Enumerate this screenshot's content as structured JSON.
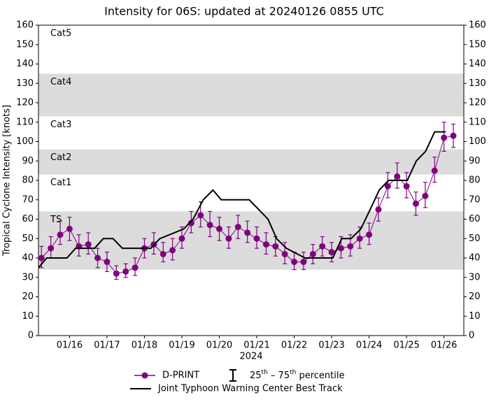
{
  "chart_data": {
    "type": "line",
    "title": "Intensity for 06S: updated at 20240126 0855 UTC",
    "xlabel": "2024",
    "ylabel": "Tropical Cyclone Intensity [knots]",
    "xlim": [
      15.17,
      26.53
    ],
    "xticks": [
      {
        "value": 16,
        "label": "01/16"
      },
      {
        "value": 17,
        "label": "01/17"
      },
      {
        "value": 18,
        "label": "01/18"
      },
      {
        "value": 19,
        "label": "01/19"
      },
      {
        "value": 20,
        "label": "01/20"
      },
      {
        "value": 21,
        "label": "01/21"
      },
      {
        "value": 22,
        "label": "01/22"
      },
      {
        "value": 23,
        "label": "01/23"
      },
      {
        "value": 24,
        "label": "01/24"
      },
      {
        "value": 25,
        "label": "01/25"
      },
      {
        "value": 26,
        "label": "01/26"
      }
    ],
    "ylim": [
      0,
      160
    ],
    "yticks": [
      0,
      10,
      20,
      30,
      40,
      50,
      60,
      70,
      80,
      90,
      100,
      110,
      120,
      130,
      140,
      150,
      160
    ],
    "y2lim": [
      0,
      160
    ],
    "y2ticks": [
      0,
      10,
      20,
      30,
      40,
      50,
      60,
      70,
      80,
      90,
      100,
      110,
      120,
      130,
      140,
      150,
      160
    ],
    "bands": [
      {
        "label": "TS",
        "range": [
          34,
          64
        ],
        "shaded": true
      },
      {
        "label": "Cat1",
        "range": [
          64,
          83
        ],
        "shaded": false
      },
      {
        "label": "Cat2",
        "range": [
          83,
          96
        ],
        "shaded": true
      },
      {
        "label": "Cat3",
        "range": [
          96,
          113
        ],
        "shaded": false
      },
      {
        "label": "Cat4",
        "range": [
          113,
          135
        ],
        "shaded": true
      },
      {
        "label": "Cat5",
        "range": [
          135,
          160
        ],
        "shaded": false
      }
    ],
    "band_color": "#dcdcdc",
    "series": [
      {
        "name": "D-PRINT",
        "color": "#800080",
        "marker": "circle",
        "x": [
          15.25,
          15.5,
          15.75,
          16,
          16.25,
          16.5,
          16.75,
          17,
          17.25,
          17.5,
          17.75,
          18,
          18.25,
          18.5,
          18.75,
          19,
          19.25,
          19.5,
          19.75,
          20,
          20.25,
          20.5,
          20.75,
          21,
          21.25,
          21.5,
          21.75,
          22,
          22.25,
          22.5,
          22.75,
          23,
          23.25,
          23.5,
          23.75,
          24,
          24.25,
          24.5,
          24.75,
          25,
          25.25,
          25.5,
          25.75,
          26,
          26.25
        ],
        "values": [
          40,
          45,
          52,
          55,
          46,
          47,
          40,
          38,
          32,
          33,
          35,
          45,
          47,
          42,
          44,
          50,
          58,
          62,
          57,
          55,
          50,
          56,
          53,
          50,
          47,
          46,
          42,
          38,
          38,
          42,
          46,
          43,
          45,
          46,
          50,
          52,
          65,
          77,
          82,
          77,
          68,
          72,
          85,
          102,
          103
        ],
        "p25": [
          35,
          40,
          47,
          49,
          41,
          42,
          35,
          33,
          29,
          30,
          31,
          40,
          42,
          38,
          39,
          45,
          53,
          56,
          51,
          49,
          45,
          50,
          48,
          45,
          42,
          41,
          37,
          34,
          34,
          37,
          41,
          38,
          40,
          41,
          45,
          47,
          59,
          71,
          76,
          71,
          62,
          66,
          79,
          95,
          97
        ],
        "p75": [
          46,
          51,
          59,
          61,
          52,
          53,
          45,
          43,
          36,
          37,
          40,
          50,
          53,
          48,
          50,
          56,
          64,
          69,
          64,
          61,
          56,
          62,
          59,
          56,
          53,
          51,
          48,
          43,
          43,
          47,
          51,
          48,
          51,
          52,
          56,
          58,
          71,
          84,
          89,
          84,
          74,
          79,
          92,
          110,
          109
        ]
      },
      {
        "name": "Joint Typhoon Warning Center Best Track",
        "color": "#000000",
        "marker": "none",
        "x": [
          15.17,
          15.39,
          15.93,
          16.16,
          16.67,
          16.9,
          17.16,
          17.41,
          18.17,
          18.41,
          19.05,
          19.3,
          19.57,
          19.83,
          20.05,
          20.8,
          21.05,
          21.3,
          21.53,
          21.79,
          22.29,
          23.03,
          23.27,
          23.52,
          23.78,
          24.03,
          24.27,
          24.52,
          25.02,
          25.26,
          25.51,
          25.75,
          26.05
        ],
        "values": [
          35,
          40,
          40,
          45,
          45,
          50,
          50,
          45,
          45,
          50,
          55,
          60,
          70,
          75,
          70,
          70,
          65,
          60,
          50,
          45,
          40,
          40,
          50,
          50,
          55,
          65,
          75,
          80,
          80,
          90,
          95,
          105,
          105
        ]
      }
    ],
    "percentile_label": [
      {
        "text": "25",
        "sup": false
      },
      {
        "text": "th",
        "sup": true
      },
      {
        "text": " – 75",
        "sup": false
      },
      {
        "text": "th",
        "sup": true
      },
      {
        "text": " percentile",
        "sup": false
      }
    ]
  }
}
